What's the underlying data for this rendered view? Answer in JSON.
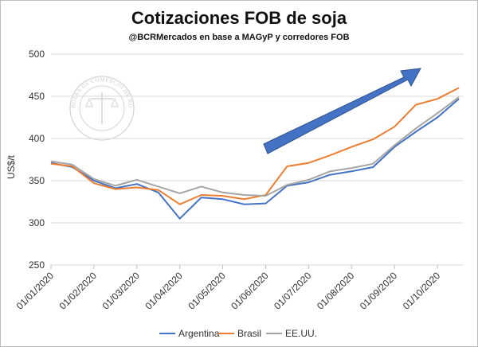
{
  "chart_data": {
    "type": "line",
    "title": "Cotizaciones FOB de soja",
    "subtitle": "@BCRMercados  en base a MAGyP y corredores FOB",
    "ylabel": "US$/t",
    "xlabel": "",
    "ylim": [
      250,
      500
    ],
    "yticks": [
      250,
      300,
      350,
      400,
      450,
      500
    ],
    "grid": true,
    "legend_position": "bottom",
    "watermark": "BOLSA DE COMERCIO DE ROSARIO",
    "x": [
      "01/01/2020",
      "15/01/2020",
      "01/02/2020",
      "15/02/2020",
      "01/03/2020",
      "15/03/2020",
      "01/04/2020",
      "15/04/2020",
      "01/05/2020",
      "15/05/2020",
      "01/06/2020",
      "15/06/2020",
      "01/07/2020",
      "15/07/2020",
      "01/08/2020",
      "15/08/2020",
      "01/09/2020",
      "15/09/2020",
      "01/10/2020",
      "15/10/2020"
    ],
    "x_tick_labels": [
      "01/01/2020",
      "01/02/2020",
      "01/03/2020",
      "01/04/2020",
      "01/05/2020",
      "01/06/2020",
      "01/07/2020",
      "01/08/2020",
      "01/09/2020",
      "01/10/2020"
    ],
    "series": [
      {
        "name": "Argentina",
        "color": "#4472c4",
        "values": [
          371,
          366,
          350,
          341,
          346,
          336,
          305,
          330,
          328,
          322,
          323,
          344,
          348,
          357,
          361,
          366,
          390,
          408,
          425,
          447
        ]
      },
      {
        "name": "Brasil",
        "color": "#ed7d31",
        "values": [
          370,
          367,
          347,
          340,
          342,
          339,
          322,
          333,
          332,
          328,
          333,
          367,
          371,
          380,
          390,
          399,
          414,
          440,
          447,
          460
        ]
      },
      {
        "name": "EE.UU.",
        "color": "#a5a5a5",
        "values": [
          373,
          369,
          352,
          344,
          351,
          343,
          335,
          343,
          336,
          333,
          332,
          345,
          351,
          361,
          365,
          370,
          392,
          412,
          430,
          449
        ]
      }
    ]
  }
}
